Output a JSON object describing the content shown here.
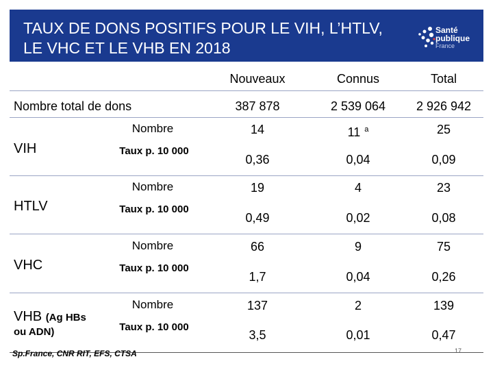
{
  "header": {
    "title": "TAUX DE DONS POSITIFS POUR LE VIH, L’HTLV,\nLE VHC ET LE VHB EN 2018",
    "logo_line1": "Santé",
    "logo_line2": "publique",
    "logo_line3": "France",
    "bg_color": "#1a3a8f"
  },
  "table": {
    "columns": [
      "Nouveaux",
      "Connus",
      "Total"
    ],
    "total_row": {
      "label": "Nombre total de dons",
      "values": [
        "387 878",
        "2 539 064",
        "2 926 942"
      ]
    },
    "groups": [
      {
        "name": "VIH",
        "rows": [
          {
            "label": "Nombre",
            "values": [
              "14",
              "11",
              "25"
            ],
            "note": "a"
          },
          {
            "label": "Taux p. 10 000",
            "values": [
              "0,36",
              "0,04",
              "0,09"
            ]
          }
        ]
      },
      {
        "name": "HTLV",
        "rows": [
          {
            "label": "Nombre",
            "values": [
              "19",
              "4",
              "23"
            ]
          },
          {
            "label": "Taux p. 10 000",
            "values": [
              "0,49",
              "0,02",
              "0,08"
            ]
          }
        ]
      },
      {
        "name": "VHC",
        "rows": [
          {
            "label": "Nombre",
            "values": [
              "66",
              "9",
              "75"
            ]
          },
          {
            "label": "Taux p. 10 000",
            "values": [
              "1,7",
              "0,04",
              "0,26"
            ]
          }
        ]
      },
      {
        "name": "VHB",
        "name_suffix": "(Ag HBs",
        "name_line2": "ou ADN)",
        "rows": [
          {
            "label": "Nombre",
            "values": [
              "137",
              "2",
              "139"
            ]
          },
          {
            "label": "Taux p. 10 000",
            "values": [
              "3,5",
              "0,01",
              "0,47"
            ]
          }
        ]
      }
    ]
  },
  "source": "Sp.France, CNR RIT,  EFS, CTSA",
  "page_number": "17"
}
